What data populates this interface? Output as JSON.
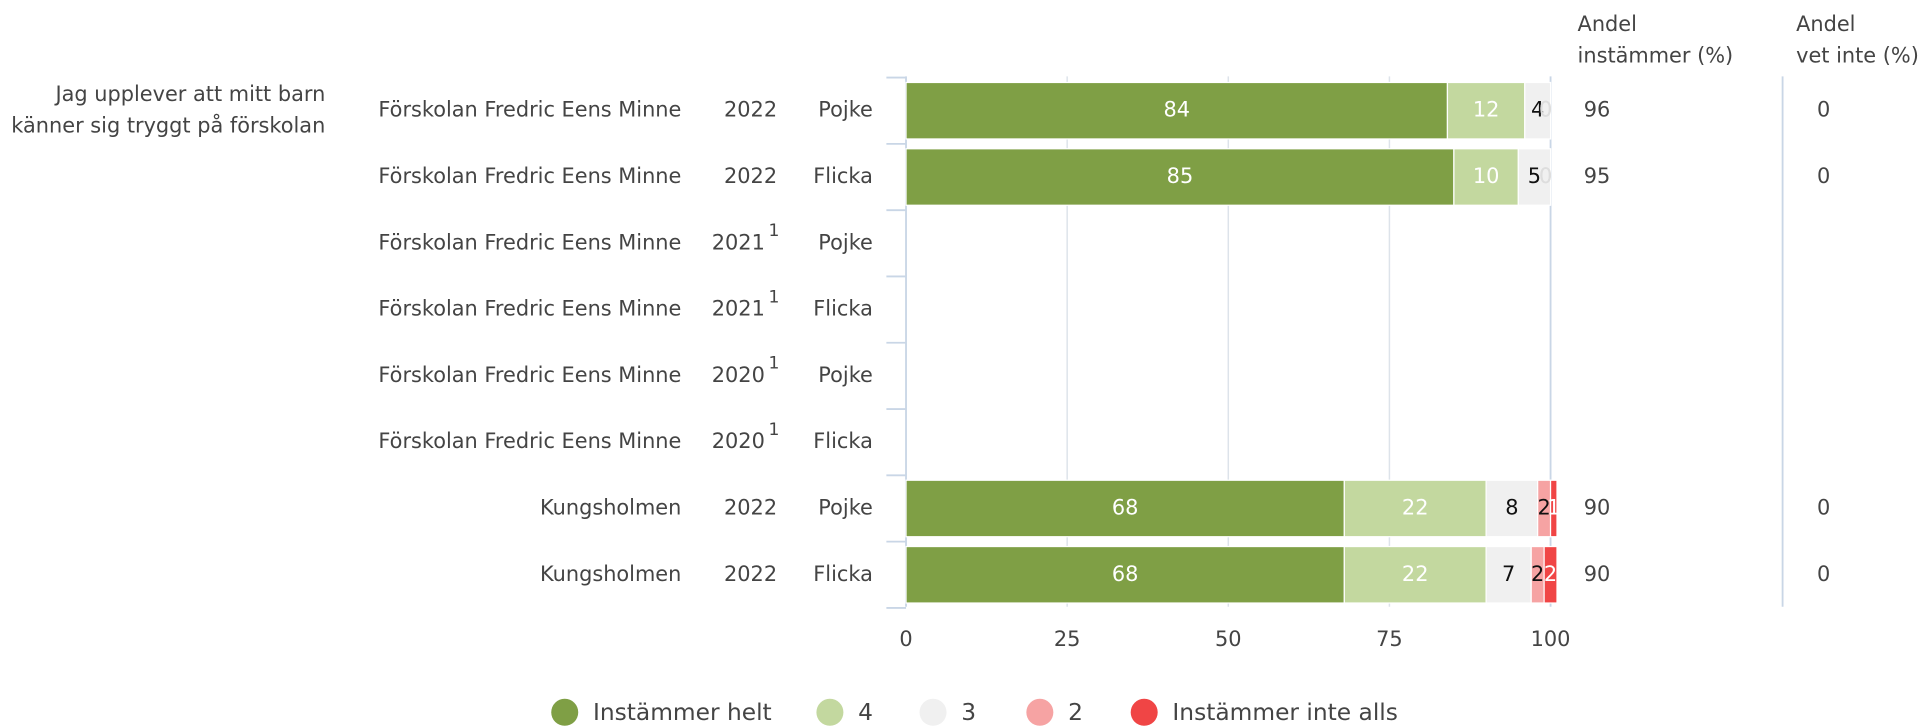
{
  "chart_data": {
    "type": "stacked_barh",
    "question": [
      "Jag upplever att mitt barn",
      "känner sig tryggt på förskolan"
    ],
    "categories": [
      {
        "school": "Förskolan Fredric Eens Minne",
        "year": 2022,
        "note": null,
        "gender": "Pojke"
      },
      {
        "school": "Förskolan Fredric Eens Minne",
        "year": 2022,
        "note": null,
        "gender": "Flicka"
      },
      {
        "school": "Förskolan Fredric Eens Minne",
        "year": 2021,
        "note": 1,
        "gender": "Pojke"
      },
      {
        "school": "Förskolan Fredric Eens Minne",
        "year": 2021,
        "note": 1,
        "gender": "Flicka"
      },
      {
        "school": "Förskolan Fredric Eens Minne",
        "year": 2020,
        "note": 1,
        "gender": "Pojke"
      },
      {
        "school": "Förskolan Fredric Eens Minne",
        "year": 2020,
        "note": 1,
        "gender": "Flicka"
      },
      {
        "school": "Kungsholmen",
        "year": 2022,
        "note": null,
        "gender": "Pojke"
      },
      {
        "school": "Kungsholmen",
        "year": 2022,
        "note": null,
        "gender": "Flicka"
      }
    ],
    "series": [
      {
        "name": "Instämmer helt",
        "color": "#7f9f45",
        "values": [
          84,
          85,
          null,
          null,
          null,
          null,
          68,
          68
        ]
      },
      {
        "name": "4",
        "color": "#c3d89f",
        "values": [
          12,
          10,
          null,
          null,
          null,
          null,
          22,
          22
        ]
      },
      {
        "name": "3",
        "color": "#f0f0f0",
        "values": [
          4,
          5,
          null,
          null,
          null,
          null,
          8,
          7
        ]
      },
      {
        "name": "2",
        "color": "#f6a3a3",
        "values": [
          0,
          0,
          null,
          null,
          null,
          null,
          2,
          2
        ]
      },
      {
        "name": "Instämmer inte alls",
        "color": "#f04545",
        "values": [
          0,
          0,
          null,
          null,
          null,
          null,
          1,
          2
        ]
      }
    ],
    "xlim": [
      0,
      100
    ],
    "xticks": [
      0,
      25,
      50,
      75,
      100
    ],
    "grid": true,
    "extra_columns": [
      {
        "header": [
          "Andel",
          "instämmer (%)"
        ],
        "values": [
          96,
          95,
          null,
          null,
          null,
          null,
          90,
          90
        ]
      },
      {
        "header": [
          "Andel",
          "vet inte (%)"
        ],
        "values": [
          0,
          0,
          null,
          null,
          null,
          null,
          0,
          0
        ]
      }
    ],
    "legend": "bottom"
  }
}
